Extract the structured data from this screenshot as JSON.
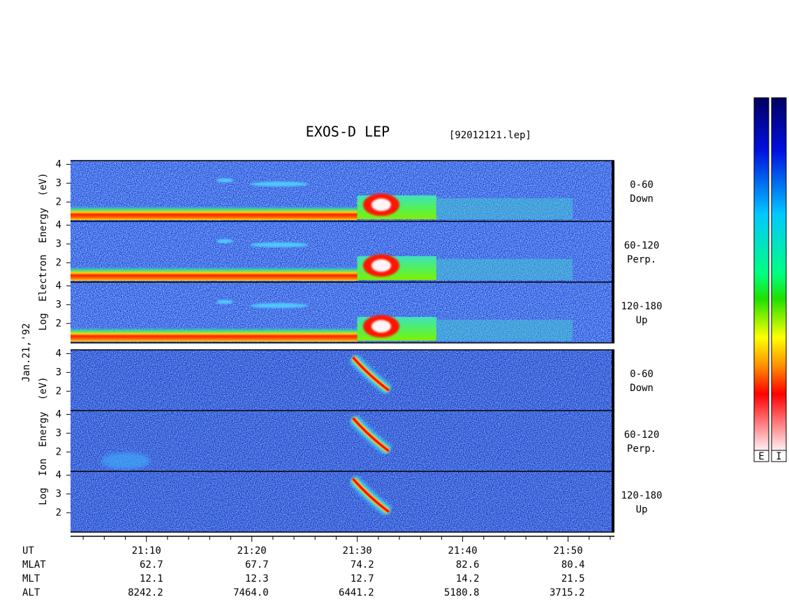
{
  "chart_data": {
    "type": "spectrogram",
    "title": "EXOS-D LEP",
    "subtitle": "[92012121.lep]",
    "date": "Jan.21,'92",
    "xlim": [
      1262.8,
      1314.4
    ],
    "xticks": [
      {
        "value": 1270,
        "label": "21:10"
      },
      {
        "value": 1280,
        "label": "21:20"
      },
      {
        "value": 1290,
        "label": "21:30"
      },
      {
        "value": 1300,
        "label": "21:40"
      },
      {
        "value": 1310,
        "label": "21:50"
      }
    ],
    "xminor": [
      1264,
      1266,
      1268,
      1272,
      1274,
      1276,
      1278,
      1282,
      1284,
      1286,
      1288,
      1292,
      1294,
      1296,
      1298,
      1302,
      1304,
      1306,
      1308,
      1312,
      1314
    ],
    "ylim": [
      0.97,
      4.2
    ],
    "yticks": [
      2,
      3,
      4
    ],
    "groups": [
      {
        "label": "Log Electron Energy (eV)",
        "panels": [
          [
            "0-60",
            "Down"
          ],
          [
            "60-120",
            "Perp."
          ],
          [
            "120-180",
            "Up"
          ]
        ]
      },
      {
        "label": "Log Ion Energy (eV)",
        "panels": [
          [
            "0-60",
            "Down"
          ],
          [
            "60-120",
            "Perp."
          ],
          [
            "120-180",
            "Up"
          ]
        ]
      }
    ],
    "ut_label": "UT",
    "ephemeris": [
      {
        "name": "MLAT",
        "values": [
          62.7,
          67.7,
          74.2,
          82.6,
          80.4
        ]
      },
      {
        "name": "MLT",
        "values": [
          12.1,
          12.3,
          12.7,
          14.2,
          21.5
        ]
      },
      {
        "name": "ALT",
        "values": [
          8242.2,
          7464.0,
          6441.2,
          5180.8,
          3715.2
        ],
        "value_labels": [
          "8242.2",
          "7464.0",
          "6441.2",
          "5180.8",
          "3715.2"
        ]
      }
    ],
    "colorbars": [
      "E",
      "I"
    ]
  }
}
